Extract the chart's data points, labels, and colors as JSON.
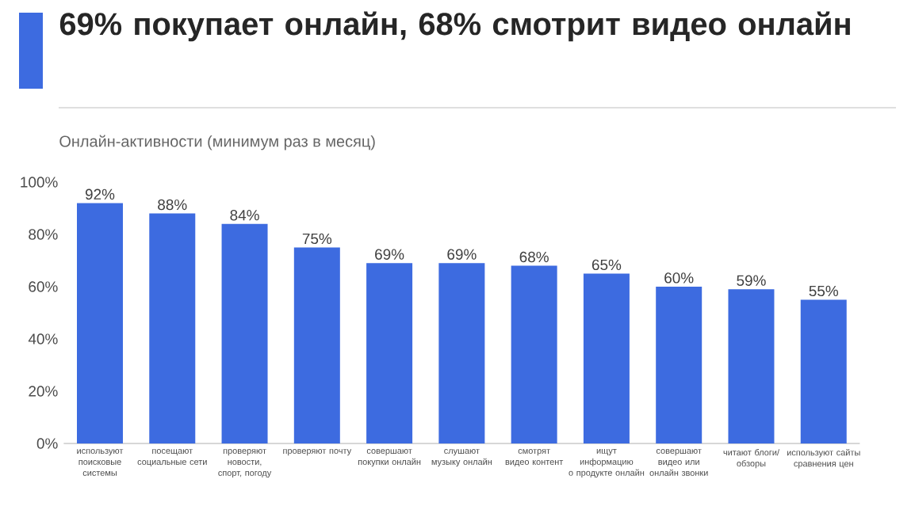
{
  "chart_data": {
    "type": "bar",
    "title": "69% покупает онлайн, 68% смотрит видео онлайн",
    "subtitle": "Онлайн-активности (минимум раз в месяц)",
    "categories": [
      "используют поисковые системы",
      "посещают социальные сети",
      "проверяют новости, спорт, погоду",
      "проверяют почту",
      "совершают покупки онлайн",
      "слушают музыку онлайн",
      "смотрят видео контент",
      "ищут информацию о продукте онлайн",
      "совершают видео или онлайн звонки",
      "читают блоги/ обзоры",
      "используют сайты сравнения цен"
    ],
    "values": [
      92,
      88,
      84,
      75,
      69,
      69,
      68,
      65,
      60,
      59,
      55
    ],
    "value_labels": [
      "92%",
      "88%",
      "84%",
      "75%",
      "69%",
      "69%",
      "68%",
      "65%",
      "60%",
      "59%",
      "55%"
    ],
    "color": "#3d6be0",
    "ylim": [
      0,
      100
    ],
    "yticks": [
      {
        "value": 0,
        "label": "0%"
      },
      {
        "value": 20,
        "label": "20%"
      },
      {
        "value": 40,
        "label": "40%"
      },
      {
        "value": 60,
        "label": "60%"
      },
      {
        "value": 80,
        "label": "80%"
      },
      {
        "value": 100,
        "label": "100%"
      }
    ]
  }
}
